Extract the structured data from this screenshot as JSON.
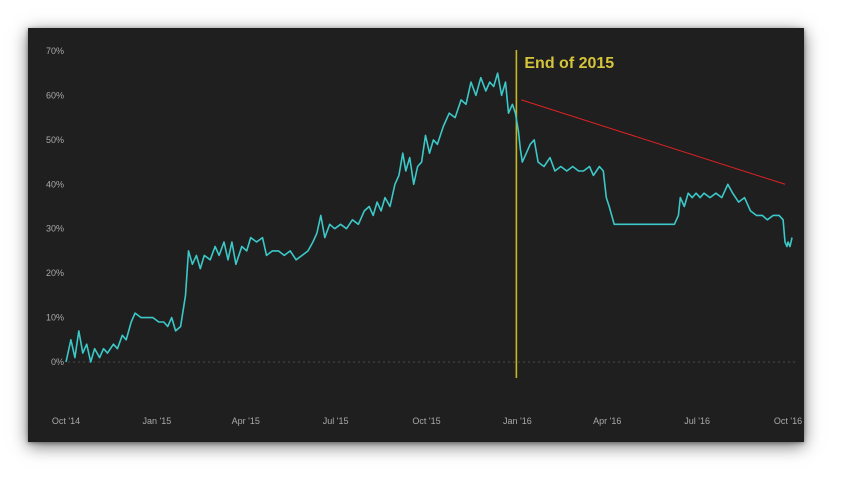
{
  "chart_data": {
    "type": "line",
    "title": "",
    "xlabel": "",
    "ylabel": "",
    "x_ticks": [
      "Oct '14",
      "Jan '15",
      "Apr '15",
      "Jul '15",
      "Oct '15",
      "Jan '16",
      "Apr '16",
      "Jul '16",
      "Oct '16"
    ],
    "y_ticks": [
      "0%",
      "10%",
      "20%",
      "30%",
      "40%",
      "50%",
      "60%",
      "70%"
    ],
    "ylim": [
      0,
      70
    ],
    "xlim": [
      "2014-10-01",
      "2016-10-01"
    ],
    "grid": false,
    "zero_line": true,
    "series": [
      {
        "color": "#3cc8c8",
        "points": [
          [
            "2014-10-01",
            0
          ],
          [
            "2014-10-06",
            5
          ],
          [
            "2014-10-10",
            1
          ],
          [
            "2014-10-14",
            7
          ],
          [
            "2014-10-18",
            2
          ],
          [
            "2014-10-22",
            4
          ],
          [
            "2014-10-26",
            0
          ],
          [
            "2014-10-30",
            3
          ],
          [
            "2014-11-04",
            1
          ],
          [
            "2014-11-08",
            3
          ],
          [
            "2014-11-12",
            2
          ],
          [
            "2014-11-18",
            4
          ],
          [
            "2014-11-22",
            3
          ],
          [
            "2014-11-27",
            6
          ],
          [
            "2014-12-01",
            5
          ],
          [
            "2014-12-06",
            9
          ],
          [
            "2014-12-10",
            11
          ],
          [
            "2014-12-16",
            10
          ],
          [
            "2014-12-22",
            10
          ],
          [
            "2014-12-28",
            10
          ],
          [
            "2015-01-03",
            9
          ],
          [
            "2015-01-08",
            9
          ],
          [
            "2015-01-12",
            8
          ],
          [
            "2015-01-16",
            10
          ],
          [
            "2015-01-20",
            7
          ],
          [
            "2015-01-25",
            8
          ],
          [
            "2015-01-30",
            15
          ],
          [
            "2015-02-02",
            25
          ],
          [
            "2015-02-06",
            22
          ],
          [
            "2015-02-10",
            24
          ],
          [
            "2015-02-14",
            21
          ],
          [
            "2015-02-18",
            24
          ],
          [
            "2015-02-24",
            23
          ],
          [
            "2015-03-01",
            26
          ],
          [
            "2015-03-05",
            24
          ],
          [
            "2015-03-10",
            27
          ],
          [
            "2015-03-14",
            23
          ],
          [
            "2015-03-18",
            27
          ],
          [
            "2015-03-22",
            22
          ],
          [
            "2015-03-28",
            26
          ],
          [
            "2015-04-02",
            25
          ],
          [
            "2015-04-06",
            28
          ],
          [
            "2015-04-12",
            27
          ],
          [
            "2015-04-18",
            28
          ],
          [
            "2015-04-22",
            24
          ],
          [
            "2015-04-28",
            25
          ],
          [
            "2015-05-04",
            25
          ],
          [
            "2015-05-10",
            24
          ],
          [
            "2015-05-16",
            25
          ],
          [
            "2015-05-22",
            23
          ],
          [
            "2015-05-28",
            24
          ],
          [
            "2015-06-03",
            25
          ],
          [
            "2015-06-08",
            27
          ],
          [
            "2015-06-12",
            29
          ],
          [
            "2015-06-16",
            33
          ],
          [
            "2015-06-20",
            28
          ],
          [
            "2015-06-25",
            31
          ],
          [
            "2015-06-30",
            30
          ],
          [
            "2015-07-06",
            31
          ],
          [
            "2015-07-12",
            30
          ],
          [
            "2015-07-18",
            32
          ],
          [
            "2015-07-24",
            31
          ],
          [
            "2015-07-30",
            34
          ],
          [
            "2015-08-04",
            35
          ],
          [
            "2015-08-08",
            33
          ],
          [
            "2015-08-12",
            36
          ],
          [
            "2015-08-16",
            34
          ],
          [
            "2015-08-20",
            37
          ],
          [
            "2015-08-25",
            35
          ],
          [
            "2015-08-30",
            40
          ],
          [
            "2015-09-03",
            42
          ],
          [
            "2015-09-07",
            47
          ],
          [
            "2015-09-10",
            43
          ],
          [
            "2015-09-14",
            46
          ],
          [
            "2015-09-18",
            40
          ],
          [
            "2015-09-22",
            44
          ],
          [
            "2015-09-26",
            45
          ],
          [
            "2015-09-30",
            51
          ],
          [
            "2015-10-04",
            47
          ],
          [
            "2015-10-08",
            50
          ],
          [
            "2015-10-12",
            49
          ],
          [
            "2015-10-18",
            53
          ],
          [
            "2015-10-24",
            56
          ],
          [
            "2015-10-30",
            55
          ],
          [
            "2015-11-05",
            59
          ],
          [
            "2015-11-10",
            58
          ],
          [
            "2015-11-15",
            63
          ],
          [
            "2015-11-20",
            60
          ],
          [
            "2015-11-25",
            64
          ],
          [
            "2015-11-30",
            61
          ],
          [
            "2015-12-04",
            63
          ],
          [
            "2015-12-08",
            62
          ],
          [
            "2015-12-12",
            65
          ],
          [
            "2015-12-16",
            60
          ],
          [
            "2015-12-20",
            63
          ],
          [
            "2015-12-23",
            56
          ],
          [
            "2015-12-27",
            58
          ],
          [
            "2015-12-30",
            56
          ],
          [
            "2016-01-02",
            52
          ],
          [
            "2016-01-04",
            48
          ],
          [
            "2016-01-06",
            45
          ],
          [
            "2016-01-10",
            47
          ],
          [
            "2016-01-14",
            49
          ],
          [
            "2016-01-18",
            50
          ],
          [
            "2016-01-22",
            45
          ],
          [
            "2016-01-28",
            44
          ],
          [
            "2016-02-03",
            46
          ],
          [
            "2016-02-08",
            43
          ],
          [
            "2016-02-14",
            44
          ],
          [
            "2016-02-20",
            43
          ],
          [
            "2016-02-26",
            44
          ],
          [
            "2016-03-03",
            43
          ],
          [
            "2016-03-08",
            43
          ],
          [
            "2016-03-14",
            44
          ],
          [
            "2016-03-18",
            42
          ],
          [
            "2016-03-24",
            44
          ],
          [
            "2016-03-28",
            43
          ],
          [
            "2016-03-31",
            37
          ],
          [
            "2016-04-03",
            35
          ],
          [
            "2016-04-08",
            31
          ],
          [
            "2016-04-14",
            31
          ],
          [
            "2016-04-24",
            31
          ],
          [
            "2016-05-06",
            31
          ],
          [
            "2016-05-18",
            31
          ],
          [
            "2016-06-01",
            31
          ],
          [
            "2016-06-08",
            31
          ],
          [
            "2016-06-12",
            33
          ],
          [
            "2016-06-14",
            37
          ],
          [
            "2016-06-18",
            35
          ],
          [
            "2016-06-22",
            38
          ],
          [
            "2016-06-26",
            37
          ],
          [
            "2016-06-30",
            38
          ],
          [
            "2016-07-04",
            37
          ],
          [
            "2016-07-08",
            38
          ],
          [
            "2016-07-14",
            37
          ],
          [
            "2016-07-20",
            38
          ],
          [
            "2016-07-26",
            37
          ],
          [
            "2016-08-01",
            40
          ],
          [
            "2016-08-06",
            38
          ],
          [
            "2016-08-12",
            36
          ],
          [
            "2016-08-18",
            37
          ],
          [
            "2016-08-24",
            34
          ],
          [
            "2016-08-30",
            33
          ],
          [
            "2016-09-05",
            33
          ],
          [
            "2016-09-10",
            32
          ],
          [
            "2016-09-16",
            33
          ],
          [
            "2016-09-22",
            33
          ],
          [
            "2016-09-26",
            32
          ],
          [
            "2016-09-28",
            27
          ],
          [
            "2016-09-30",
            26
          ],
          [
            "2016-10-01",
            27
          ],
          [
            "2016-10-03",
            26
          ],
          [
            "2016-10-05",
            28
          ]
        ]
      }
    ],
    "annotations": {
      "marker_line": {
        "x": "2015-12-31",
        "label": "End of 2015",
        "color": "#c8b81e"
      },
      "trend_line": {
        "from": [
          "2016-01-05",
          59
        ],
        "to": [
          "2016-09-28",
          40
        ],
        "color": "#e02222"
      }
    }
  }
}
